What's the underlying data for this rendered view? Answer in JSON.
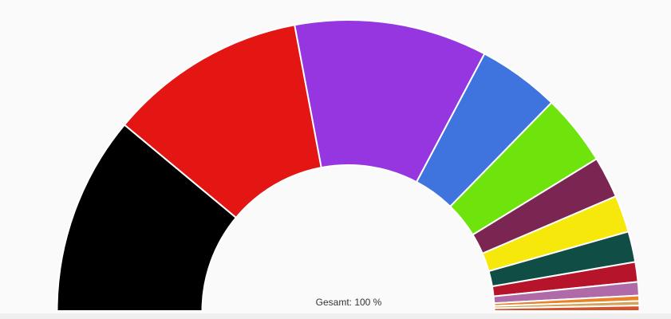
{
  "chart_data": {
    "type": "half-donut",
    "values": [
      22.1,
      22.0,
      21.4,
      9.1,
      7.9,
      4.6,
      4.1,
      3.4,
      2.2,
      1.5,
      0.6,
      0.5,
      0.6
    ],
    "colors": [
      "#000000",
      "#e31613",
      "#9536e0",
      "#3f74df",
      "#6ee30c",
      "#7a2552",
      "#f5e80a",
      "#0f4d45",
      "#b5142a",
      "#b06aa8",
      "#e8832a",
      "#d1a35b",
      "#d6522c"
    ],
    "total_label": "Gesamt: 100 %"
  }
}
